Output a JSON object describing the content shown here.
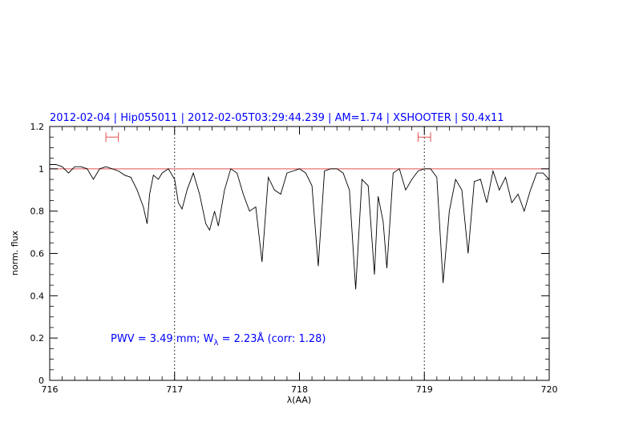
{
  "chart_data": {
    "type": "line",
    "title": "2012-02-04 | Hip055011 | 2012-02-05T03:29:44.239 | AM=1.74 | XSHOOTER | S0.4x11",
    "xlabel": "λ(AA)",
    "ylabel": "norm. flux",
    "xlim": [
      716,
      720
    ],
    "ylim": [
      0,
      1.2
    ],
    "xticks": [
      "716",
      "717",
      "718",
      "719",
      "720"
    ],
    "yticks": [
      "0",
      "0.2",
      "0.4",
      "0.6",
      "0.8",
      "1",
      "1.2"
    ],
    "annotation": {
      "pwv": "PWV = 3.49 mm; W",
      "sub": "λ",
      "rest": " = 2.23Å (corr: 1.28)"
    },
    "reference_line": {
      "y": 1.0,
      "color": "#e05050"
    },
    "vertical_dotted_lines": [
      717.0,
      719.0
    ],
    "continuum_ranges": [
      {
        "x0": 716.45,
        "x1": 716.55
      },
      {
        "x0": 718.95,
        "x1": 719.05
      }
    ],
    "colors": {
      "spectrum": "#000000",
      "title": "#0000ff",
      "reference": "#e05050",
      "ranges": "#e05050"
    },
    "series": [
      {
        "x": [
          716.0,
          716.05,
          716.1,
          716.15,
          716.2,
          716.25,
          716.3,
          716.35,
          716.4,
          716.45,
          716.5,
          716.55,
          716.6,
          716.65,
          716.7,
          716.75,
          716.78,
          716.8,
          716.83,
          716.87,
          716.9,
          716.95,
          717.0,
          717.03,
          717.06,
          717.1,
          717.15,
          717.2,
          717.25,
          717.28,
          717.32,
          717.35,
          717.4,
          717.45,
          717.5,
          717.55,
          717.6,
          717.65,
          717.7,
          717.75,
          717.8,
          717.85,
          717.9,
          717.95,
          718.0,
          718.05,
          718.1,
          718.15,
          718.2,
          718.25,
          718.3,
          718.35,
          718.4,
          718.45,
          718.5,
          718.55,
          718.6,
          718.63,
          718.67,
          718.7,
          718.75,
          718.8,
          718.85,
          718.9,
          718.95,
          719.0,
          719.05,
          719.1,
          719.15,
          719.2,
          719.25,
          719.3,
          719.35,
          719.4,
          719.45,
          719.5,
          719.55,
          719.6,
          719.65,
          719.7,
          719.75,
          719.8,
          719.85,
          719.9,
          719.95,
          720.0
        ],
        "y": [
          1.02,
          1.02,
          1.01,
          0.98,
          1.01,
          1.01,
          1.0,
          0.95,
          1.0,
          1.01,
          1.0,
          0.99,
          0.97,
          0.96,
          0.9,
          0.82,
          0.74,
          0.88,
          0.97,
          0.95,
          0.98,
          1.0,
          0.95,
          0.84,
          0.81,
          0.9,
          0.98,
          0.88,
          0.74,
          0.71,
          0.8,
          0.73,
          0.9,
          1.0,
          0.98,
          0.88,
          0.8,
          0.82,
          0.56,
          0.96,
          0.9,
          0.88,
          0.98,
          0.99,
          1.0,
          0.98,
          0.92,
          0.54,
          0.99,
          1.0,
          1.0,
          0.98,
          0.9,
          0.43,
          0.95,
          0.92,
          0.5,
          0.87,
          0.75,
          0.53,
          0.98,
          1.0,
          0.9,
          0.95,
          0.99,
          1.0,
          1.0,
          0.96,
          0.46,
          0.8,
          0.95,
          0.9,
          0.6,
          0.94,
          0.95,
          0.84,
          0.99,
          0.9,
          0.96,
          0.84,
          0.88,
          0.8,
          0.9,
          0.98,
          0.98,
          0.95
        ]
      }
    ]
  }
}
